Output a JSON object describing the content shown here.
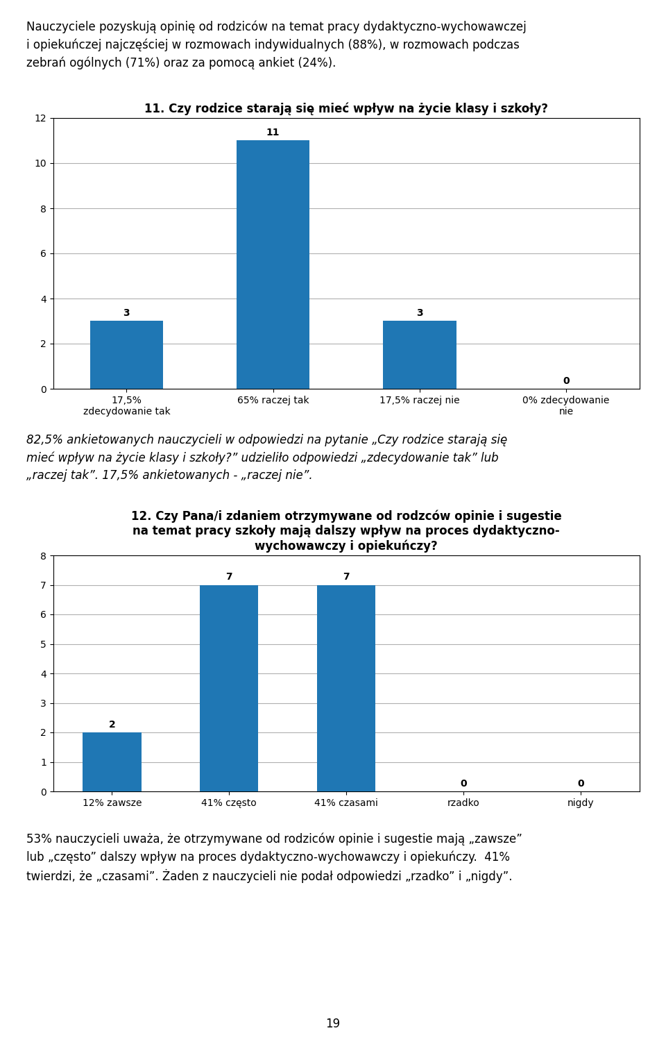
{
  "annotations": [
    "Nauczyciele pozyskują opinię od rodziców na temat pracy dydaktyczno-wychowawczej\ni opiekuńczej najczęściej w rozmowach indywidualnych (88%), w rozmowach podczas\nzebrań ogólnych (71%) oraz za pomocą ankiet (24%).",
    "82,5% ankietowanych nauczycieli w odpowiedzi na pytanie „Czy rodzice starają się\nmieć wpływ na życie klasy i szkoły?” udzieliło odpowiedzi „zdecydowanie tak” lub\n„raczej tak”. 17,5% ankietowanych - „raczej nie”.",
    "53% nauczycieli uważa, że otrzymywane od rodziców opinie i sugestie mają „zawsze”\nlub „często” dalszy wpływ na proces dydaktyczno-wychowawczy i opiekuńczy.  41%\ntwierdzi, że „czasami”. Żaden z nauczycieli nie podał odpowiedzi „rzadko” i „nigdy”.",
    "19"
  ],
  "chart_data": [
    {
      "type": "bar",
      "title": "11. Czy rodzice starają się mieć wpływ na życie klasy i szkoły?",
      "categories": [
        "17,5%\nzdecydowanie tak",
        "65% raczej tak",
        "17,5% raczej nie",
        "0% zdecydowanie\nnie"
      ],
      "values": [
        3,
        11,
        3,
        0
      ],
      "ylim": [
        0,
        12
      ],
      "yticks": [
        0,
        2,
        4,
        6,
        8,
        10,
        12
      ],
      "grid": true,
      "data_labels": true
    },
    {
      "type": "bar",
      "title": "12. Czy Pana/i zdaniem otrzymywane od rodzców opinie i sugestie\nna temat pracy szkoły mają dalszy wpływ na proces dydaktyczno-\nwychowawczy i opiekuńczy?",
      "categories": [
        "12% zawsze",
        "41% często",
        "41% czasami",
        "rzadko",
        "nigdy"
      ],
      "values": [
        2,
        7,
        7,
        0,
        0
      ],
      "ylim": [
        0,
        8
      ],
      "yticks": [
        0,
        1,
        2,
        3,
        4,
        5,
        6,
        7,
        8
      ],
      "grid": true,
      "data_labels": true
    }
  ]
}
